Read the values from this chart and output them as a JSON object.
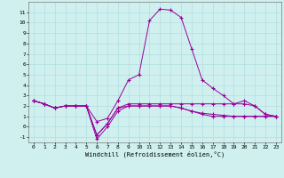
{
  "xlabel": "Windchill (Refroidissement éolien,°C)",
  "background_color": "#d0f0f0",
  "grid_color": "#b0dede",
  "line_color": "#990099",
  "x_data": [
    0,
    1,
    2,
    3,
    4,
    5,
    6,
    7,
    8,
    9,
    10,
    11,
    12,
    13,
    14,
    15,
    16,
    17,
    18,
    19,
    20,
    21,
    22,
    23
  ],
  "series": [
    [
      2.5,
      2.2,
      1.8,
      2.0,
      2.0,
      2.0,
      0.5,
      0.8,
      2.5,
      4.5,
      5.0,
      10.2,
      11.3,
      11.2,
      10.5,
      7.5,
      4.5,
      3.7,
      3.0,
      2.2,
      2.5,
      2.0,
      1.2,
      1.0
    ],
    [
      2.5,
      2.2,
      1.8,
      2.0,
      2.0,
      2.0,
      -0.8,
      0.3,
      1.8,
      2.2,
      2.2,
      2.2,
      2.2,
      2.2,
      2.2,
      2.2,
      2.2,
      2.2,
      2.2,
      2.2,
      2.2,
      2.0,
      1.2,
      1.0
    ],
    [
      2.5,
      2.2,
      1.8,
      2.0,
      2.0,
      2.0,
      -0.8,
      0.3,
      1.8,
      2.0,
      2.0,
      2.0,
      2.0,
      2.0,
      1.8,
      1.5,
      1.3,
      1.2,
      1.1,
      1.0,
      1.0,
      1.0,
      1.0,
      1.0
    ],
    [
      2.5,
      2.2,
      1.8,
      2.0,
      2.0,
      2.0,
      -1.2,
      0.0,
      1.5,
      2.0,
      2.0,
      2.0,
      2.0,
      2.0,
      1.8,
      1.5,
      1.2,
      1.0,
      1.0,
      1.0,
      1.0,
      1.0,
      1.0,
      1.0
    ]
  ],
  "ylim": [
    -1.5,
    12.0
  ],
  "yticks": [
    -1,
    0,
    1,
    2,
    3,
    4,
    5,
    6,
    7,
    8,
    9,
    10,
    11
  ],
  "xticks": [
    0,
    1,
    2,
    3,
    4,
    5,
    6,
    7,
    8,
    9,
    10,
    11,
    12,
    13,
    14,
    15,
    16,
    17,
    18,
    19,
    20,
    21,
    22,
    23
  ]
}
